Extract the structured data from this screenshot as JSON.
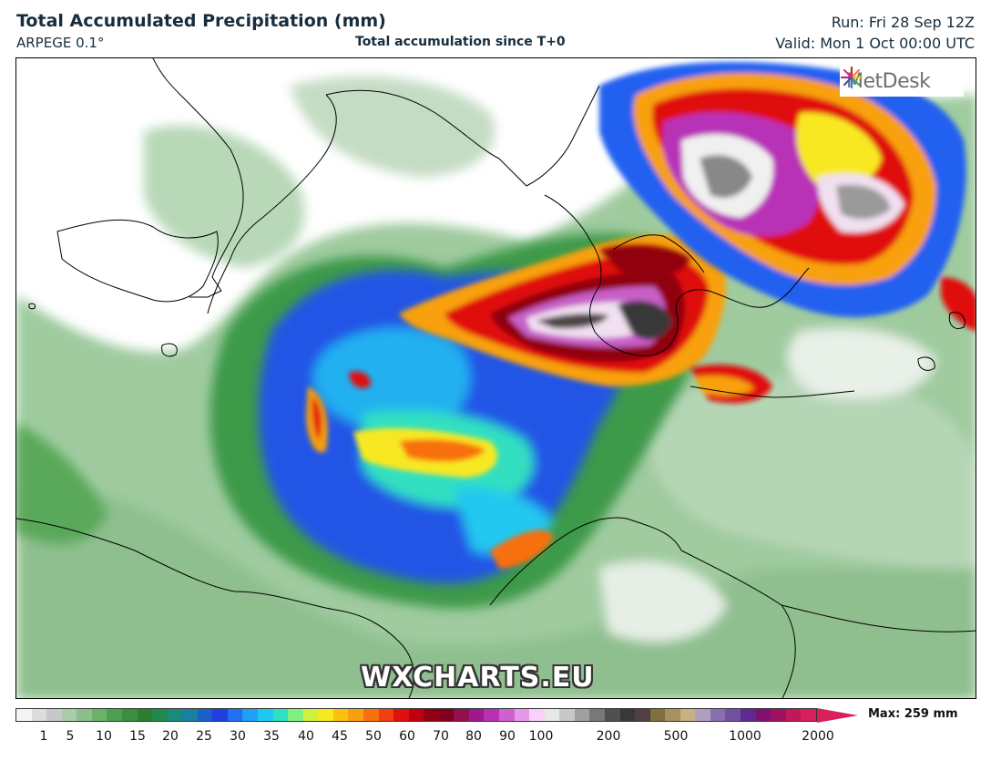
{
  "header": {
    "title": "Total Accumulated Precipitation (mm)",
    "model": "ARPEGE 0.1°",
    "subtitle": "Total accumulation since T+0",
    "run": "Run: Fri 28 Sep 12Z",
    "valid": "Valid: Mon 1 Oct 00:00 UTC"
  },
  "logo": {
    "text": "MetDesk",
    "icon": "metdesk-burst-icon"
  },
  "watermark": "WXCHARTS.EU",
  "colorbar": {
    "max_label": "Max: 259 mm",
    "ticks": [
      "1",
      "5",
      "10",
      "15",
      "20",
      "25",
      "30",
      "35",
      "40",
      "45",
      "50",
      "60",
      "70",
      "80",
      "90",
      "100",
      "200",
      "500",
      "1000",
      "2000"
    ],
    "colors": [
      "#f4f4f4",
      "#dcdcdc",
      "#c8c8c8",
      "#a9cba9",
      "#8bbf8b",
      "#6bb06b",
      "#4e9f4e",
      "#3d8f3d",
      "#2e7d2e",
      "#1f8a4c",
      "#1a8a7a",
      "#1a7fa0",
      "#1a60c8",
      "#1f3fe0",
      "#2070f0",
      "#1ea0f5",
      "#20c8f0",
      "#30e0c0",
      "#80f080",
      "#d0f040",
      "#f8e820",
      "#fcc010",
      "#f8a010",
      "#f87010",
      "#f04010",
      "#e01010",
      "#c00010",
      "#900010",
      "#800020",
      "#901050",
      "#a01890",
      "#b830b8",
      "#d060d0",
      "#e898e8",
      "#f8d0f8",
      "#e8e8e8",
      "#c8c8c8",
      "#a0a0a0",
      "#787878",
      "#505050",
      "#383838",
      "#504040",
      "#807040",
      "#a89060",
      "#c8b080",
      "#b0a0c0",
      "#8870b0",
      "#7050a0",
      "#602890",
      "#801070",
      "#a01060",
      "#c01858",
      "#d9205a"
    ]
  }
}
